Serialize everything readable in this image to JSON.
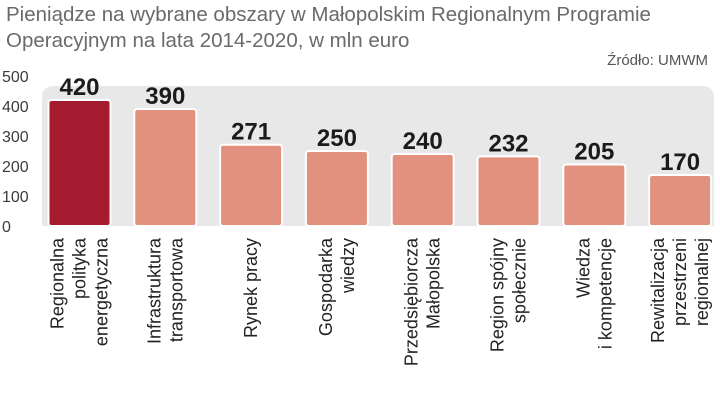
{
  "chart_data": {
    "type": "bar",
    "title": "Pieniądze na wybrane obszary w Małopolskim Regionalnym Programie Operacyjnym na lata 2014-2020, w mln euro",
    "source": "Źródło: UMWM",
    "categories": [
      [
        "Regionalna",
        "polityka",
        "energetyczna"
      ],
      [
        "Infrastruktura",
        "transportowa"
      ],
      [
        "Rynek pracy"
      ],
      [
        "Gospodarka",
        "wiedzy"
      ],
      [
        "Przedsiębiorcza",
        "Małopolska"
      ],
      [
        "Region spójny",
        "społecznie"
      ],
      [
        "Wiedza",
        "i kompetencje"
      ],
      [
        "Rewitalizacja",
        "przestrzeni",
        "regionalnej"
      ]
    ],
    "values": [
      420,
      390,
      271,
      250,
      240,
      232,
      205,
      170
    ],
    "value_labels": [
      "420",
      "390",
      "271",
      "250",
      "240",
      "232",
      "205",
      "170"
    ],
    "yticks": [
      "0",
      "100",
      "200",
      "300",
      "400",
      "500"
    ],
    "ylim": [
      0,
      500
    ],
    "grid": false,
    "colors": {
      "highlight": "#a51c30",
      "bar": "#e1917e",
      "panel": "#e8e8e8",
      "bar_border": "#ffffff"
    }
  }
}
